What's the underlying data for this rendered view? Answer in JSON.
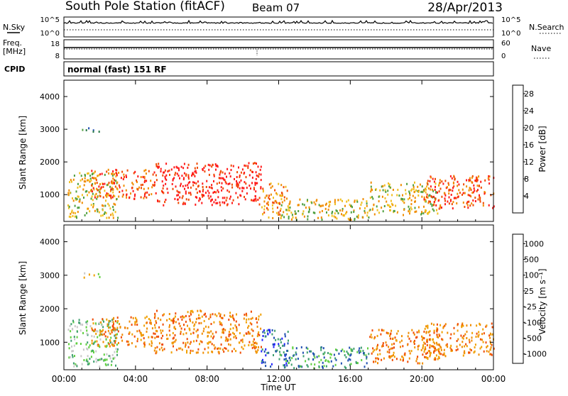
{
  "header": {
    "station": "South Pole Station (fitACF)",
    "beam": "Beam 07",
    "date": "28/Apr/2013"
  },
  "strip_labels": {
    "nsky": "N.Sky",
    "nsearch": "N.Search",
    "freq_line1": "Freq.",
    "freq_line2": "[MHz]",
    "nave": "Nave",
    "cpid": "CPID",
    "cpid_value": "normal (fast) 151 RF"
  },
  "noise_axis": {
    "left_top": "10^5",
    "left_bottom": "10^0",
    "right_top": "10^5",
    "right_bottom": "10^0"
  },
  "freq_axis": {
    "left_top": "18",
    "left_bottom": "8",
    "right_top": "60",
    "right_bottom": "0"
  },
  "colors": {
    "power": [
      "#1f1fff",
      "#1f4fb0",
      "#2a7a4a",
      "#4f9f3f",
      "#f0c020",
      "#f08c00",
      "#f04a00",
      "#ff1a1a"
    ],
    "velocity": [
      "#ff1a1a",
      "#f04a00",
      "#f08c00",
      "#f0a000",
      "#c8c8c8",
      "#5fcf3f",
      "#3f9f6f",
      "#1f4fb0",
      "#2020ff"
    ]
  },
  "chart_data": [
    {
      "type": "heatmap",
      "name": "power",
      "ylabel": "Slant Range [km]",
      "xlabel": "Time UT",
      "xlim_hours": [
        0,
        24
      ],
      "ylim": [
        180,
        4500
      ],
      "y_ticks": [
        "1000",
        "2000",
        "3000",
        "4000"
      ],
      "x_ticks": [
        "00:00",
        "04:00",
        "08:00",
        "12:00",
        "16:00",
        "20:00",
        "00:00"
      ],
      "colorbar": {
        "label": "Power [dB]",
        "ticks": [
          "4",
          "8",
          "12",
          "16",
          "20",
          "24",
          "28"
        ],
        "range": [
          0,
          30
        ]
      },
      "regions": [
        {
          "t0": 1.0,
          "t1": 2.0,
          "r0": 2950,
          "r1": 3100,
          "level": 2
        },
        {
          "t0": 0.2,
          "t1": 3.0,
          "r0": 300,
          "r1": 1700,
          "level": 4
        },
        {
          "t0": 1.5,
          "t1": 5.0,
          "r0": 900,
          "r1": 1800,
          "level": 6
        },
        {
          "t0": 5.0,
          "t1": 11.0,
          "r0": 700,
          "r1": 2000,
          "level": 7
        },
        {
          "t0": 11.0,
          "t1": 12.5,
          "r0": 300,
          "r1": 1400,
          "level": 5
        },
        {
          "t0": 12.0,
          "t1": 17.0,
          "r0": 250,
          "r1": 900,
          "level": 4
        },
        {
          "t0": 17.0,
          "t1": 21.0,
          "r0": 400,
          "r1": 1400,
          "level": 4
        },
        {
          "t0": 20.0,
          "t1": 24.0,
          "r0": 600,
          "r1": 1600,
          "level": 6
        }
      ]
    },
    {
      "type": "heatmap",
      "name": "velocity",
      "ylabel": "Slant Range [km]",
      "xlabel": "Time UT",
      "xlim_hours": [
        0,
        24
      ],
      "ylim": [
        180,
        4500
      ],
      "y_ticks": [
        "1000",
        "2000",
        "3000",
        "4000"
      ],
      "x_ticks": [
        "00:00",
        "04:00",
        "08:00",
        "12:00",
        "16:00",
        "20:00",
        "00:00"
      ],
      "colorbar": {
        "label": "Velocity [m s⁻¹]",
        "ticks": [
          "1000",
          "500",
          "100",
          "25",
          "-25",
          "-100",
          "-500",
          "-1000"
        ],
        "range": [
          1100,
          -1100
        ]
      },
      "regions": [
        {
          "t0": 1.0,
          "t1": 2.0,
          "r0": 2950,
          "r1": 3100,
          "level": 4
        },
        {
          "t0": 0.2,
          "t1": 3.0,
          "r0": 300,
          "r1": 1700,
          "level": 5
        },
        {
          "t0": 1.5,
          "t1": 5.0,
          "r0": 900,
          "r1": 1800,
          "level": 2
        },
        {
          "t0": 5.0,
          "t1": 11.0,
          "r0": 700,
          "r1": 2000,
          "level": 2
        },
        {
          "t0": 11.0,
          "t1": 12.5,
          "r0": 300,
          "r1": 1400,
          "level": 7
        },
        {
          "t0": 12.0,
          "t1": 17.0,
          "r0": 250,
          "r1": 900,
          "level": 6
        },
        {
          "t0": 17.0,
          "t1": 21.0,
          "r0": 400,
          "r1": 1400,
          "level": 2
        },
        {
          "t0": 20.0,
          "t1": 24.0,
          "r0": 600,
          "r1": 1600,
          "level": 2
        }
      ]
    }
  ]
}
